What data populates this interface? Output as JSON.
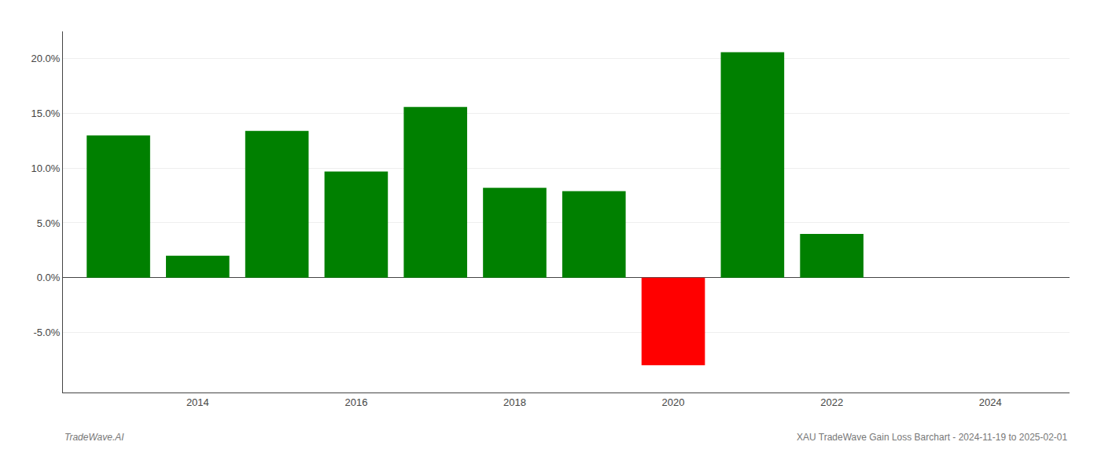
{
  "chart_data": {
    "type": "bar",
    "x": [
      2013,
      2014,
      2015,
      2016,
      2017,
      2018,
      2019,
      2020,
      2021,
      2022,
      2023
    ],
    "values": [
      13.0,
      2.0,
      13.4,
      9.7,
      15.6,
      8.2,
      7.9,
      -8.0,
      20.6,
      4.0,
      null
    ],
    "colors": [
      "#008000",
      "#008000",
      "#008000",
      "#008000",
      "#008000",
      "#008000",
      "#008000",
      "#ff0000",
      "#008000",
      "#008000",
      null
    ],
    "xlim": [
      2012.3,
      2025.0
    ],
    "xticks": [
      2014,
      2016,
      2018,
      2020,
      2022,
      2024
    ],
    "ylim": [
      -10.5,
      22.5
    ],
    "yticks": [
      {
        "value": -5.0,
        "label": "-5.0%"
      },
      {
        "value": 0.0,
        "label": "0.0%"
      },
      {
        "value": 5.0,
        "label": "5.0%"
      },
      {
        "value": 10.0,
        "label": "10.0%"
      },
      {
        "value": 15.0,
        "label": "15.0%"
      },
      {
        "value": 20.0,
        "label": "20.0%"
      }
    ],
    "grid": true,
    "annotations": [
      "TradeWave.AI",
      "XAU TradeWave Gain Loss Barchart - 2024-11-19 to 2025-02-01"
    ]
  }
}
